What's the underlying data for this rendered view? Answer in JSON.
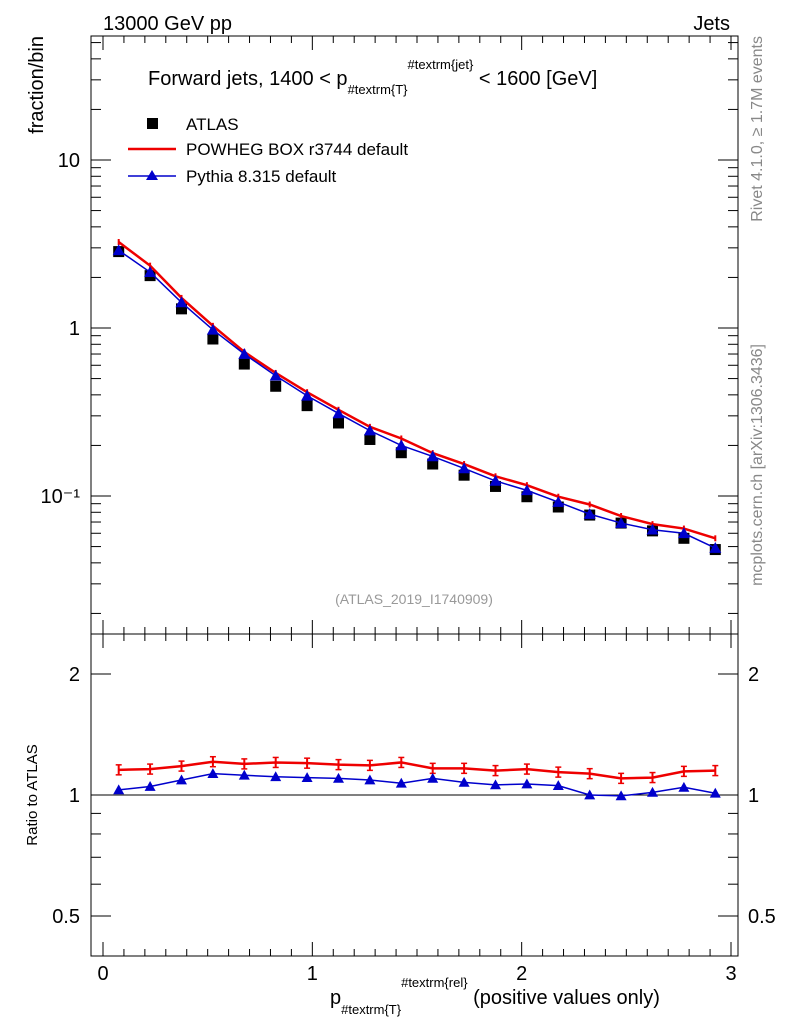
{
  "header": {
    "left": "13000 GeV pp",
    "right": "Jets"
  },
  "side_labels": {
    "rivet": "Rivet 4.1.0, ≥ 1.7M events",
    "mcplots": "mcplots.cern.ch [arXiv:1306.3436]"
  },
  "chart_data": {
    "type": "line",
    "title": {
      "prefix": "Forward jets, 1400 < p",
      "sub": "#textrm{T}",
      "sup": "#textrm{jet}",
      "suffix": " < 1600 [GeV]"
    },
    "watermark": "(ATLAS_2019_I1740909)",
    "xlabel": {
      "main": "p",
      "sub": "#textrm{T}",
      "sup": "#textrm{rel}",
      "suffix": " (positive values only)"
    },
    "ylabel": "fraction/bin",
    "ratio_ylabel": "Ratio to ATLAS",
    "xlim": [
      0,
      3
    ],
    "ylim": [
      0.02,
      50
    ],
    "ylog": true,
    "ratio_ylim": [
      0.4,
      2.4
    ],
    "ratio_reference": 1,
    "legend_position": "top-left",
    "x_ticks": [
      {
        "value": 0,
        "label": "0"
      },
      {
        "value": 1,
        "label": "1"
      },
      {
        "value": 2,
        "label": "2"
      },
      {
        "value": 3,
        "label": "3"
      }
    ],
    "y_ticks": [
      {
        "value": 10,
        "label": "10"
      },
      {
        "value": 1,
        "label": "1"
      },
      {
        "value": 0.1,
        "label": "10⁻¹"
      }
    ],
    "ratio_ticks": [
      {
        "value": 2,
        "label": "2"
      },
      {
        "value": 1,
        "label": "1"
      },
      {
        "value": 0.5,
        "label": "0.5"
      }
    ],
    "x": [
      0.075,
      0.225,
      0.375,
      0.525,
      0.675,
      0.825,
      0.975,
      1.125,
      1.275,
      1.425,
      1.575,
      1.725,
      1.875,
      2.025,
      2.175,
      2.325,
      2.475,
      2.625,
      2.775,
      2.925
    ],
    "series": [
      {
        "name": "ATLAS",
        "style": "data",
        "color": "#000000",
        "values": [
          2.85,
          2.05,
          1.3,
          0.86,
          0.61,
          0.45,
          0.345,
          0.272,
          0.217,
          0.181,
          0.155,
          0.133,
          0.114,
          0.099,
          0.086,
          0.077,
          0.069,
          0.062,
          0.056,
          0.048
        ]
      },
      {
        "name": "POWHEG BOX r3744 default",
        "style": "line",
        "color": "#ee0000",
        "values": [
          3.25,
          2.35,
          1.51,
          1.03,
          0.72,
          0.54,
          0.415,
          0.326,
          0.258,
          0.22,
          0.18,
          0.155,
          0.131,
          0.116,
          0.099,
          0.089,
          0.076,
          0.068,
          0.064,
          0.056
        ],
        "ratio": [
          1.155,
          1.16,
          1.18,
          1.21,
          1.195,
          1.205,
          1.2,
          1.19,
          1.185,
          1.205,
          1.165,
          1.165,
          1.15,
          1.16,
          1.14,
          1.13,
          1.1,
          1.105,
          1.145,
          1.15
        ]
      },
      {
        "name": "Pythia 8.315 default",
        "style": "line-triangle",
        "color": "#0000cc",
        "values": [
          2.9,
          2.15,
          1.42,
          0.975,
          0.7,
          0.52,
          0.395,
          0.31,
          0.245,
          0.2,
          0.172,
          0.146,
          0.123,
          0.108,
          0.092,
          0.078,
          0.069,
          0.063,
          0.06,
          0.049
        ],
        "ratio": [
          1.03,
          1.05,
          1.09,
          1.13,
          1.12,
          1.11,
          1.105,
          1.1,
          1.09,
          1.07,
          1.1,
          1.075,
          1.06,
          1.065,
          1.055,
          1.0,
          0.995,
          1.015,
          1.045,
          1.01
        ]
      }
    ]
  }
}
